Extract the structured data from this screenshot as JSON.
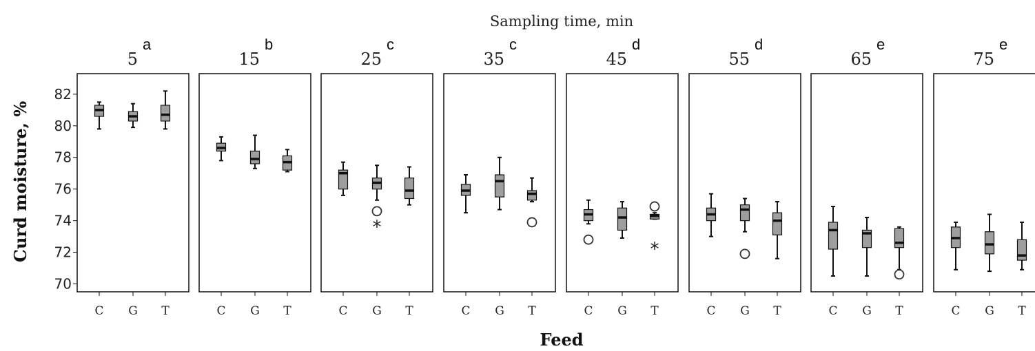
{
  "chart_data": {
    "type": "boxplot",
    "title": "Sampling time, min",
    "xlabel": "Feed",
    "ylabel": "Curd moisture, %",
    "ylim": [
      69.5,
      83.3
    ],
    "yticks": [
      "70",
      "72",
      "74",
      "76",
      "78",
      "80",
      "82"
    ],
    "categories": [
      "C",
      "G",
      "T"
    ],
    "panels": [
      {
        "label": "5",
        "letter": "a",
        "boxes": [
          {
            "cat": "C",
            "wlo": 79.8,
            "q1": 80.6,
            "med": 81.0,
            "q3": 81.3,
            "whi": 81.5,
            "outliers": []
          },
          {
            "cat": "G",
            "wlo": 79.9,
            "q1": 80.3,
            "med": 80.6,
            "q3": 80.9,
            "whi": 81.4,
            "outliers": []
          },
          {
            "cat": "T",
            "wlo": 79.8,
            "q1": 80.3,
            "med": 80.7,
            "q3": 81.3,
            "whi": 82.2,
            "outliers": []
          }
        ]
      },
      {
        "label": "15",
        "letter": "b",
        "boxes": [
          {
            "cat": "C",
            "wlo": 77.8,
            "q1": 78.4,
            "med": 78.6,
            "q3": 78.9,
            "whi": 79.3,
            "outliers": []
          },
          {
            "cat": "G",
            "wlo": 77.3,
            "q1": 77.6,
            "med": 77.9,
            "q3": 78.4,
            "whi": 79.4,
            "outliers": []
          },
          {
            "cat": "T",
            "wlo": 77.1,
            "q1": 77.2,
            "med": 77.7,
            "q3": 78.1,
            "whi": 78.5,
            "outliers": []
          }
        ]
      },
      {
        "label": "25",
        "letter": "c",
        "boxes": [
          {
            "cat": "C",
            "wlo": 75.6,
            "q1": 76.0,
            "med": 77.0,
            "q3": 77.2,
            "whi": 77.7,
            "outliers": []
          },
          {
            "cat": "G",
            "wlo": 75.3,
            "q1": 76.0,
            "med": 76.4,
            "q3": 76.7,
            "whi": 77.5,
            "outliers": [
              {
                "v": 74.6,
                "kind": "circle"
              },
              {
                "v": 73.7,
                "kind": "star"
              }
            ]
          },
          {
            "cat": "T",
            "wlo": 75.0,
            "q1": 75.4,
            "med": 75.9,
            "q3": 76.7,
            "whi": 77.4,
            "outliers": []
          }
        ]
      },
      {
        "label": "35",
        "letter": "c",
        "boxes": [
          {
            "cat": "C",
            "wlo": 74.5,
            "q1": 75.6,
            "med": 75.9,
            "q3": 76.3,
            "whi": 76.9,
            "outliers": []
          },
          {
            "cat": "G",
            "wlo": 74.7,
            "q1": 75.5,
            "med": 76.5,
            "q3": 76.9,
            "whi": 78.0,
            "outliers": []
          },
          {
            "cat": "T",
            "wlo": 75.2,
            "q1": 75.3,
            "med": 75.7,
            "q3": 75.9,
            "whi": 76.7,
            "outliers": [
              {
                "v": 73.9,
                "kind": "circle"
              }
            ]
          }
        ]
      },
      {
        "label": "45",
        "letter": "d",
        "boxes": [
          {
            "cat": "C",
            "wlo": 73.8,
            "q1": 74.0,
            "med": 74.4,
            "q3": 74.7,
            "whi": 75.3,
            "outliers": [
              {
                "v": 72.8,
                "kind": "circle"
              }
            ]
          },
          {
            "cat": "G",
            "wlo": 72.9,
            "q1": 73.4,
            "med": 74.2,
            "q3": 74.8,
            "whi": 75.2,
            "outliers": []
          },
          {
            "cat": "T",
            "wlo": 74.1,
            "q1": 74.1,
            "med": 74.3,
            "q3": 74.4,
            "whi": 74.5,
            "outliers": [
              {
                "v": 74.9,
                "kind": "circle"
              },
              {
                "v": 72.3,
                "kind": "star"
              }
            ]
          }
        ]
      },
      {
        "label": "55",
        "letter": "d",
        "boxes": [
          {
            "cat": "C",
            "wlo": 73.0,
            "q1": 74.0,
            "med": 74.4,
            "q3": 74.8,
            "whi": 75.7,
            "outliers": []
          },
          {
            "cat": "G",
            "wlo": 73.3,
            "q1": 74.0,
            "med": 74.7,
            "q3": 75.0,
            "whi": 75.4,
            "outliers": [
              {
                "v": 71.9,
                "kind": "circle"
              }
            ]
          },
          {
            "cat": "T",
            "wlo": 71.6,
            "q1": 73.1,
            "med": 74.0,
            "q3": 74.5,
            "whi": 75.2,
            "outliers": []
          }
        ]
      },
      {
        "label": "65",
        "letter": "e",
        "boxes": [
          {
            "cat": "C",
            "wlo": 70.5,
            "q1": 72.2,
            "med": 73.4,
            "q3": 73.9,
            "whi": 74.9,
            "outliers": []
          },
          {
            "cat": "G",
            "wlo": 70.5,
            "q1": 72.3,
            "med": 73.2,
            "q3": 73.4,
            "whi": 74.2,
            "outliers": []
          },
          {
            "cat": "T",
            "wlo": 70.9,
            "q1": 72.3,
            "med": 72.6,
            "q3": 73.5,
            "whi": 73.6,
            "outliers": [
              {
                "v": 70.6,
                "kind": "circle"
              }
            ]
          }
        ]
      },
      {
        "label": "75",
        "letter": "e",
        "boxes": [
          {
            "cat": "C",
            "wlo": 70.9,
            "q1": 72.3,
            "med": 72.9,
            "q3": 73.6,
            "whi": 73.9,
            "outliers": []
          },
          {
            "cat": "G",
            "wlo": 70.8,
            "q1": 71.9,
            "med": 72.5,
            "q3": 73.3,
            "whi": 74.4,
            "outliers": []
          },
          {
            "cat": "T",
            "wlo": 70.9,
            "q1": 71.5,
            "med": 71.8,
            "q3": 72.8,
            "whi": 73.9,
            "outliers": []
          }
        ]
      }
    ]
  },
  "colors": {
    "box_fill": "#9e9e9e",
    "stroke": "#111111",
    "median": "#111111"
  }
}
